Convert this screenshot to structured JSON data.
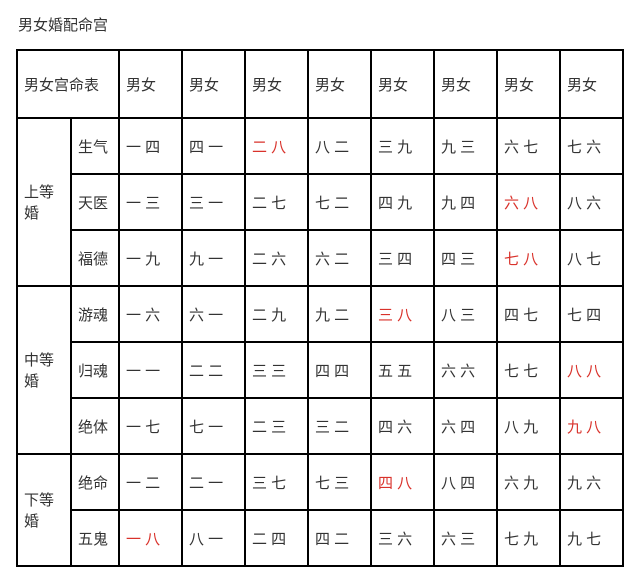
{
  "title": "男女婚配命宫",
  "corner": "男女宫命表",
  "col_heads": [
    "男女",
    "男女",
    "男女",
    "男女",
    "男女",
    "男女",
    "男女",
    "男女"
  ],
  "tiers": [
    {
      "name": "上等婚",
      "rows": [
        {
          "label": "生气",
          "cells": [
            {
              "t": "一 四"
            },
            {
              "t": "四 一"
            },
            {
              "t": "二 八",
              "red": true
            },
            {
              "t": "八 二"
            },
            {
              "t": "三 九"
            },
            {
              "t": "九 三"
            },
            {
              "t": "六 七"
            },
            {
              "t": "七 六"
            }
          ]
        },
        {
          "label": "天医",
          "cells": [
            {
              "t": "一 三"
            },
            {
              "t": "三 一"
            },
            {
              "t": "二 七"
            },
            {
              "t": "七 二"
            },
            {
              "t": "四 九"
            },
            {
              "t": "九 四"
            },
            {
              "t": "六 八",
              "red": true
            },
            {
              "t": "八 六"
            }
          ]
        },
        {
          "label": "福德",
          "cells": [
            {
              "t": "一 九"
            },
            {
              "t": "九 一"
            },
            {
              "t": "二 六"
            },
            {
              "t": "六 二"
            },
            {
              "t": "三 四"
            },
            {
              "t": "四 三"
            },
            {
              "t": "七 八",
              "red": true
            },
            {
              "t": "八 七"
            }
          ]
        }
      ]
    },
    {
      "name": "中等婚",
      "rows": [
        {
          "label": "游魂",
          "cells": [
            {
              "t": "一 六"
            },
            {
              "t": "六 一"
            },
            {
              "t": "二 九"
            },
            {
              "t": "九 二"
            },
            {
              "t": "三 八",
              "red": true
            },
            {
              "t": "八 三"
            },
            {
              "t": "四 七"
            },
            {
              "t": "七 四"
            }
          ]
        },
        {
          "label": "归魂",
          "cells": [
            {
              "t": "一 一"
            },
            {
              "t": "二 二"
            },
            {
              "t": "三 三"
            },
            {
              "t": "四 四"
            },
            {
              "t": "五 五"
            },
            {
              "t": "六 六"
            },
            {
              "t": "七 七"
            },
            {
              "t": "八 八",
              "red": true
            }
          ]
        },
        {
          "label": "绝体",
          "cells": [
            {
              "t": "一 七"
            },
            {
              "t": "七 一"
            },
            {
              "t": "二 三"
            },
            {
              "t": "三 二"
            },
            {
              "t": "四 六"
            },
            {
              "t": "六 四"
            },
            {
              "t": "八 九"
            },
            {
              "t": "九 八",
              "red": true
            }
          ]
        }
      ]
    },
    {
      "name": "下等婚",
      "rows": [
        {
          "label": "绝命",
          "cells": [
            {
              "t": "一 二"
            },
            {
              "t": "二 一"
            },
            {
              "t": "三 七"
            },
            {
              "t": "七 三"
            },
            {
              "t": "四 八",
              "red": true
            },
            {
              "t": "八 四"
            },
            {
              "t": "六 九"
            },
            {
              "t": "九 六"
            }
          ]
        },
        {
          "label": "五鬼",
          "cells": [
            {
              "t": "一 八",
              "red": true
            },
            {
              "t": "八 一"
            },
            {
              "t": "二 四"
            },
            {
              "t": "四 二"
            },
            {
              "t": "三 六"
            },
            {
              "t": "六 三"
            },
            {
              "t": "七 九"
            },
            {
              "t": "九 七"
            }
          ]
        }
      ]
    }
  ]
}
